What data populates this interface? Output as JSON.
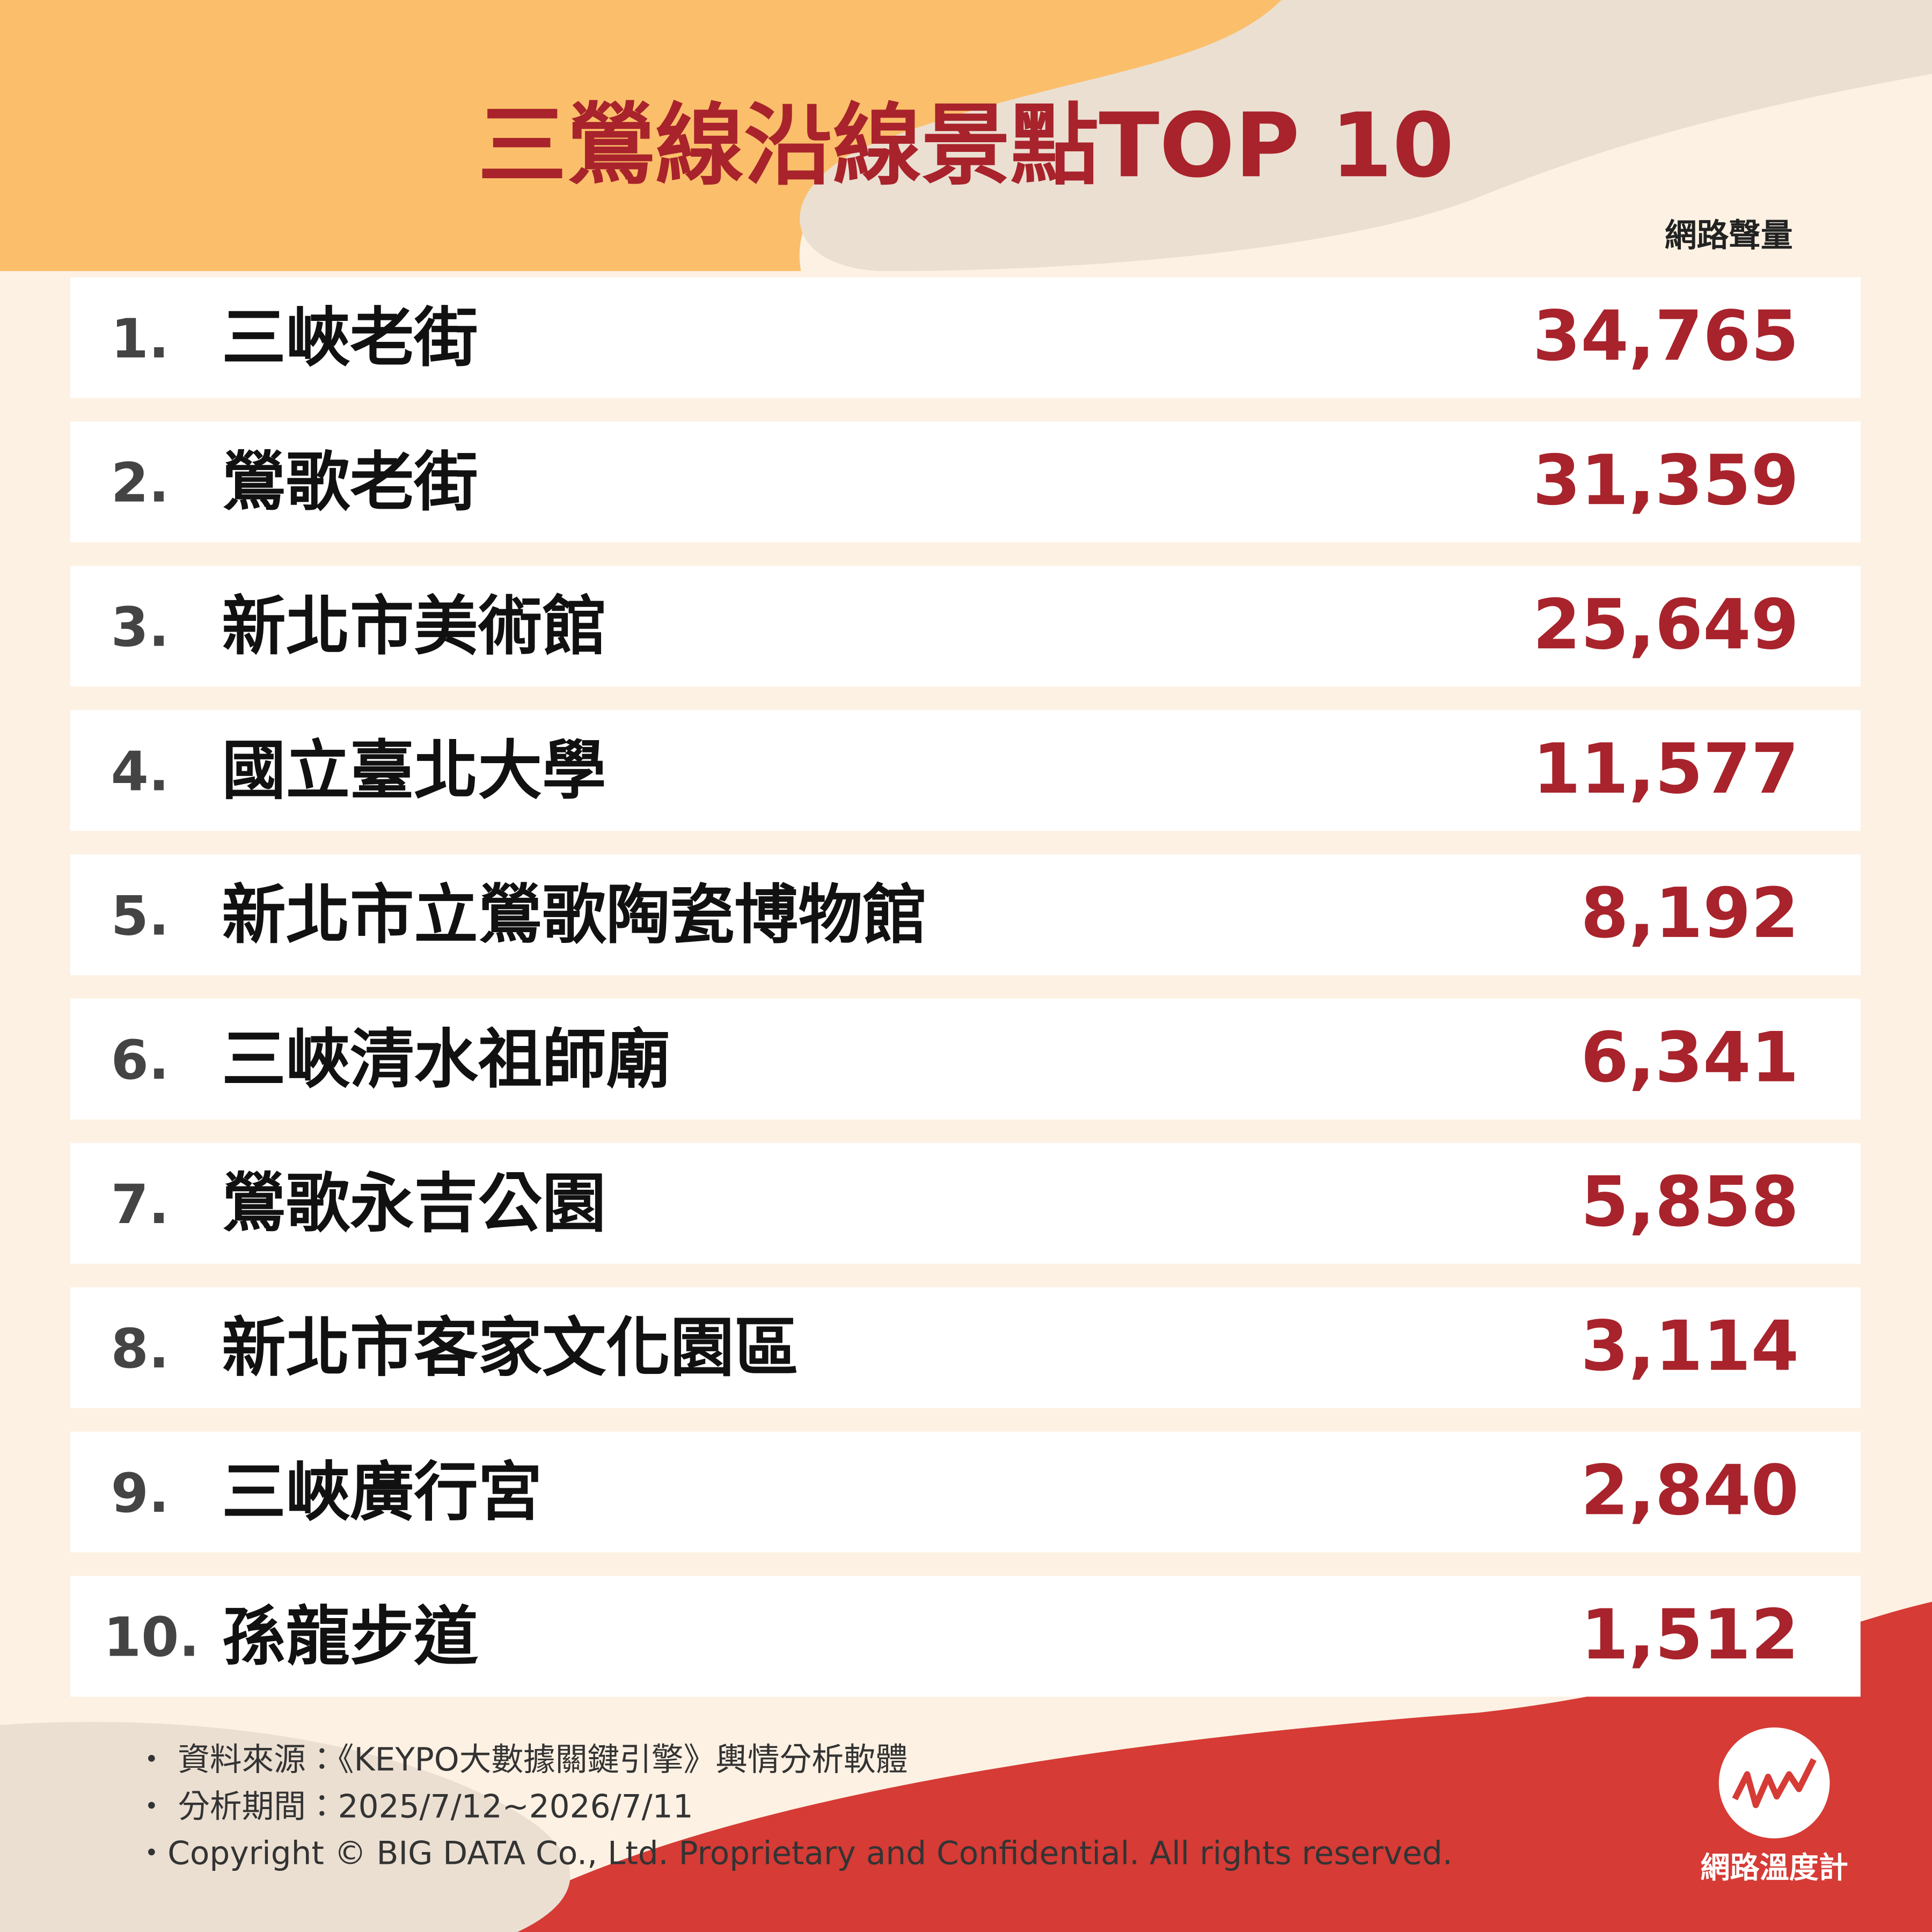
{
  "header": {
    "title": "三鶯線沿線景點TOP 10",
    "column_label": "網路聲量"
  },
  "table": {
    "rows": [
      [
        "1.",
        "三峽老街",
        "34,765"
      ],
      [
        "2.",
        "鶯歌老街",
        "31,359"
      ],
      [
        "3.",
        "新北市美術館",
        "25,649"
      ],
      [
        "4.",
        "國立臺北大學",
        "11,577"
      ],
      [
        "5.",
        "新北市立鶯歌陶瓷博物館",
        "8,192"
      ],
      [
        "6.",
        "三峽清水祖師廟",
        "6,341"
      ],
      [
        "7.",
        "鶯歌永吉公園",
        "5,858"
      ],
      [
        "8.",
        "新北市客家文化園區",
        "3,114"
      ],
      [
        "9.",
        "三峽廣行宮",
        "2,840"
      ],
      [
        "10.",
        "孫龍步道",
        "1,512"
      ]
    ]
  },
  "footer": {
    "lines": [
      "・ 資料來源：《KEYPO大數據關鍵引擎》輿情分析軟體",
      "・ 分析期間：2025/7/12~2026/7/11",
      "・Copyright © BIG DATA Co., Ltd. Proprietary and Confidential. All rights reserved."
    ]
  },
  "logo": {
    "label": "網路溫度計"
  }
}
